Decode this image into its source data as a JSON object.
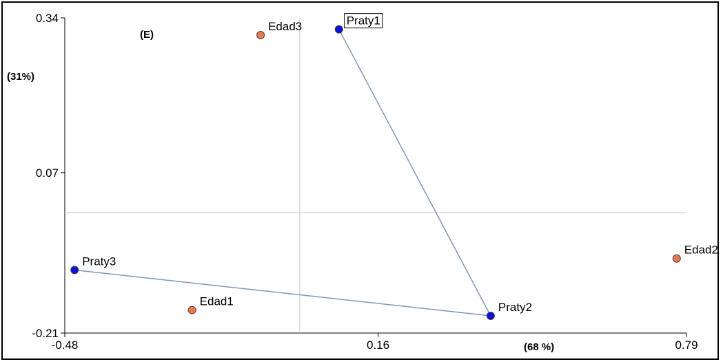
{
  "chart_data": {
    "type": "scatter",
    "title": "",
    "panel_label": "(E)",
    "xlabel": "(68 %)",
    "ylabel": "(31%)",
    "xlim": [
      -0.48,
      0.79
    ],
    "ylim": [
      -0.21,
      0.34
    ],
    "x_ticks": [
      {
        "value": -0.48,
        "label": "-0.48"
      },
      {
        "value": 0.16,
        "label": "0.16"
      },
      {
        "value": 0.79,
        "label": "0.79"
      }
    ],
    "y_ticks": [
      {
        "value": 0.34,
        "label": "0.34"
      },
      {
        "value": 0.07,
        "label": "0.07"
      },
      {
        "value": -0.21,
        "label": "-0.21"
      }
    ],
    "reference_lines": {
      "x": 0.0,
      "y": 0.0
    },
    "series": [
      {
        "name": "",
        "color": "#1010d8",
        "points": [
          {
            "label": "Praty1",
            "x": 0.08,
            "y": 0.32,
            "boxed": true
          },
          {
            "label": "Praty2",
            "x": 0.39,
            "y": -0.18,
            "boxed": false
          },
          {
            "label": "Praty3",
            "x": -0.46,
            "y": -0.1,
            "boxed": false
          }
        ]
      },
      {
        "name": "",
        "color": "#f07850",
        "points": [
          {
            "label": "Edad1",
            "x": -0.22,
            "y": -0.17,
            "boxed": false
          },
          {
            "label": "Edad2",
            "x": 0.77,
            "y": -0.08,
            "boxed": false
          },
          {
            "label": "Edad3",
            "x": -0.08,
            "y": 0.31,
            "boxed": false
          }
        ]
      }
    ],
    "connections": [
      [
        "Praty1",
        "Praty2"
      ],
      [
        "Praty2",
        "Praty3"
      ]
    ],
    "connection_color": "#8096b8",
    "grid": false
  }
}
